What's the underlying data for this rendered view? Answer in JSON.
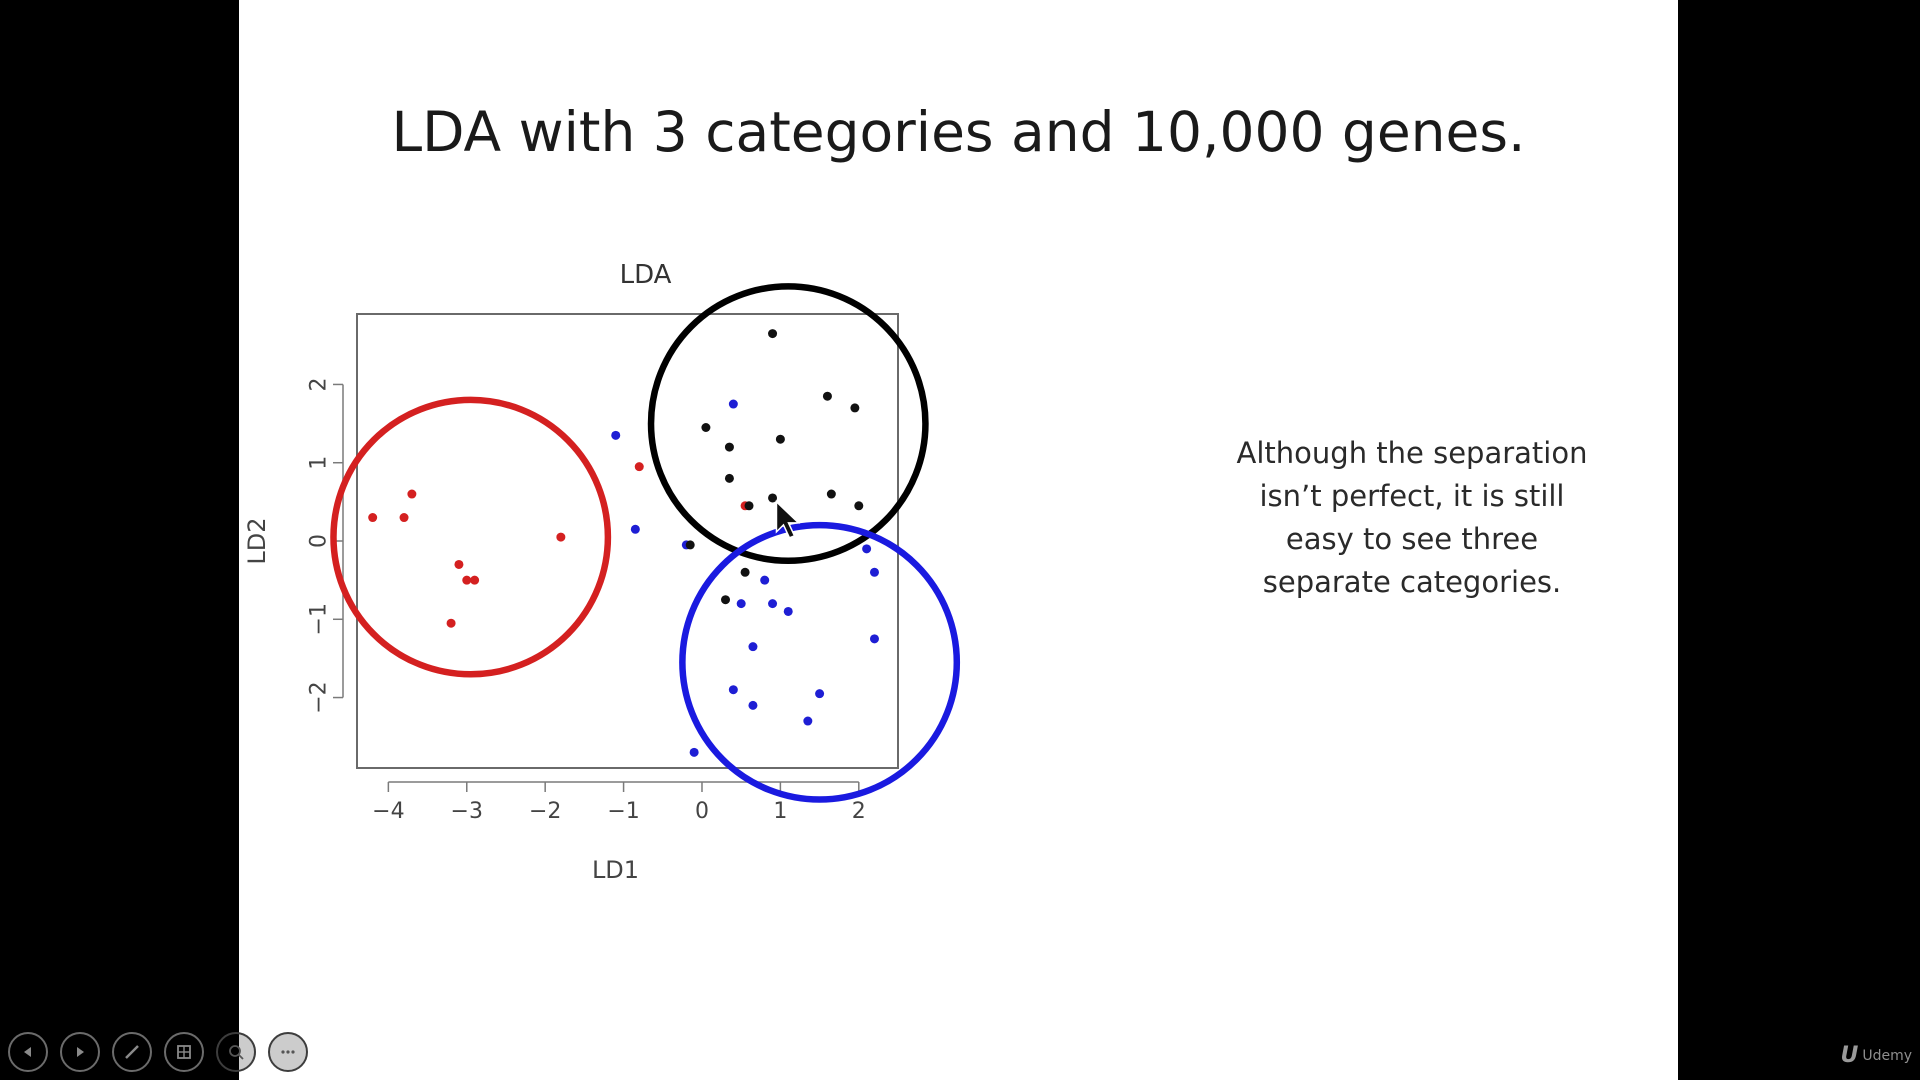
{
  "slide": {
    "title": "LDA with 3 categories and 10,000 genes.",
    "note_lines": [
      "Although the separation",
      "isn’t perfect, it is still",
      "easy to see three",
      "separate categories."
    ]
  },
  "chart_data": {
    "type": "scatter",
    "title": "LDA",
    "xlabel": "LD1",
    "ylabel": "LD2",
    "xlim": [
      -4.4,
      2.5
    ],
    "ylim": [
      -2.9,
      2.9
    ],
    "xticks": [
      -4,
      -3,
      -2,
      -1,
      0,
      1,
      2
    ],
    "yticks": [
      -2,
      -1,
      0,
      1,
      2
    ],
    "grid": false,
    "series": [
      {
        "color": "#d42020",
        "points": [
          [
            -4.2,
            0.3
          ],
          [
            -3.8,
            0.3
          ],
          [
            -3.7,
            0.6
          ],
          [
            -3.1,
            -0.3
          ],
          [
            -3.0,
            -0.5
          ],
          [
            -2.9,
            -0.5
          ],
          [
            -3.2,
            -1.05
          ],
          [
            -1.8,
            0.05
          ],
          [
            -0.8,
            0.95
          ],
          [
            0.55,
            0.45
          ]
        ]
      },
      {
        "color": "#1e1ed4",
        "points": [
          [
            -1.1,
            1.35
          ],
          [
            -0.85,
            0.15
          ],
          [
            -0.2,
            -0.05
          ],
          [
            0.4,
            1.75
          ],
          [
            0.5,
            -0.8
          ],
          [
            0.8,
            -0.5
          ],
          [
            0.9,
            -0.8
          ],
          [
            1.1,
            -0.9
          ],
          [
            0.65,
            -1.35
          ],
          [
            0.4,
            -1.9
          ],
          [
            0.65,
            -2.1
          ],
          [
            1.5,
            -1.95
          ],
          [
            1.35,
            -2.3
          ],
          [
            -0.1,
            -2.7
          ],
          [
            2.2,
            -0.4
          ],
          [
            2.2,
            -1.25
          ],
          [
            2.1,
            -0.1
          ]
        ]
      },
      {
        "color": "#111111",
        "points": [
          [
            0.9,
            2.65
          ],
          [
            1.6,
            1.85
          ],
          [
            1.95,
            1.7
          ],
          [
            0.35,
            1.2
          ],
          [
            0.05,
            1.45
          ],
          [
            1.0,
            1.3
          ],
          [
            0.35,
            0.8
          ],
          [
            1.65,
            0.6
          ],
          [
            2.0,
            0.45
          ],
          [
            0.9,
            0.55
          ],
          [
            0.6,
            0.45
          ],
          [
            -0.15,
            -0.05
          ],
          [
            0.55,
            -0.4
          ],
          [
            0.3,
            -0.75
          ]
        ]
      }
    ],
    "annotations": [
      {
        "shape": "circle",
        "color": "#d42020",
        "center": [
          -2.95,
          0.05
        ],
        "radius": 1.75
      },
      {
        "shape": "circle",
        "color": "#000000",
        "center": [
          1.1,
          1.5
        ],
        "radius": 1.75
      },
      {
        "shape": "circle",
        "color": "#1a1ae0",
        "center": [
          1.5,
          -1.55
        ],
        "radius": 1.75
      }
    ]
  },
  "player": {
    "controls": [
      "previous-icon",
      "next-icon",
      "pen-icon",
      "slides-icon",
      "zoom-icon",
      "more-icon"
    ],
    "brand": "Udemy"
  }
}
